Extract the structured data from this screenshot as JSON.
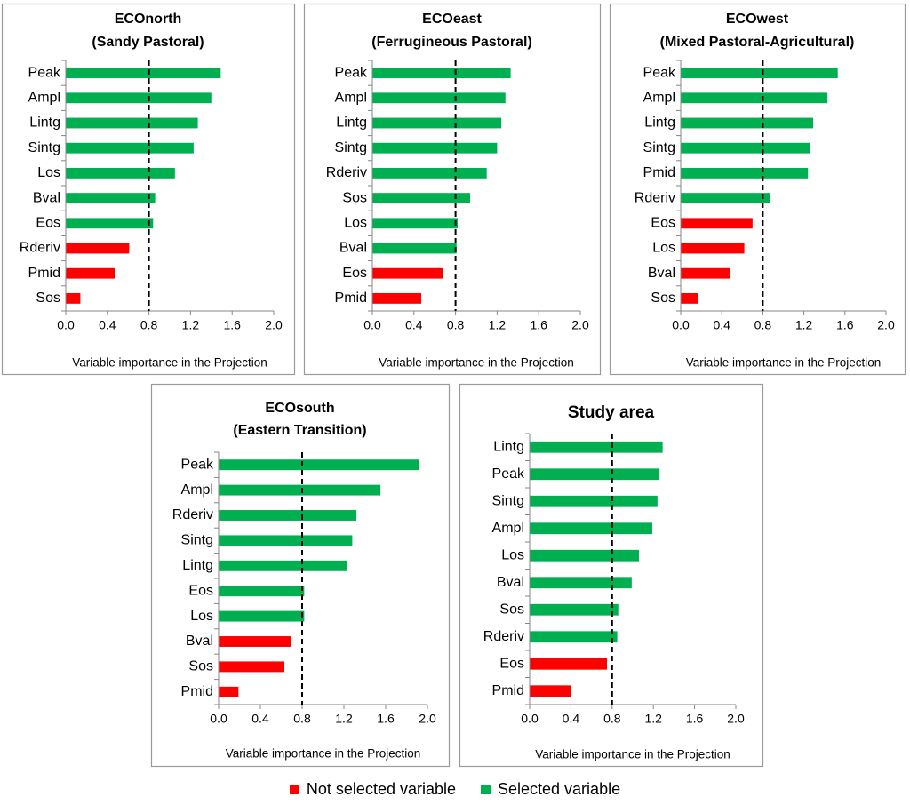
{
  "chart_data": [
    {
      "type": "bar",
      "orientation": "horizontal",
      "title": "ECOnorth",
      "subtitle": "(Sandy Pastoral)",
      "xlabel": "Variable importance in the Projection",
      "xlim": [
        0.0,
        2.0
      ],
      "xticks": [
        "0.0",
        "0.4",
        "0.8",
        "1.2",
        "1.6",
        "2.0"
      ],
      "threshold": 0.8,
      "categories": [
        "Peak",
        "Ampl",
        "Lintg",
        "Sintg",
        "Los",
        "Bval",
        "Eos",
        "Rderiv",
        "Pmid",
        "Sos"
      ],
      "values": [
        1.49,
        1.4,
        1.27,
        1.23,
        1.05,
        0.86,
        0.84,
        0.61,
        0.47,
        0.14
      ],
      "selected": [
        true,
        true,
        true,
        true,
        true,
        true,
        true,
        false,
        false,
        false
      ]
    },
    {
      "type": "bar",
      "orientation": "horizontal",
      "title": "ECOeast",
      "subtitle": "(Ferrugineous Pastoral)",
      "xlabel": "Variable importance in the Projection",
      "xlim": [
        0.0,
        2.0
      ],
      "xticks": [
        "0.0",
        "0.4",
        "0.8",
        "1.2",
        "1.6",
        "2.0"
      ],
      "threshold": 0.8,
      "categories": [
        "Peak",
        "Ampl",
        "Lintg",
        "Sintg",
        "Rderiv",
        "Sos",
        "Los",
        "Bval",
        "Eos",
        "Pmid"
      ],
      "values": [
        1.33,
        1.28,
        1.24,
        1.2,
        1.1,
        0.94,
        0.82,
        0.81,
        0.68,
        0.47
      ],
      "selected": [
        true,
        true,
        true,
        true,
        true,
        true,
        true,
        true,
        false,
        false
      ]
    },
    {
      "type": "bar",
      "orientation": "horizontal",
      "title": "ECOwest",
      "subtitle": "(Mixed Pastoral-Agricultural)",
      "xlabel": "Variable importance in the Projection",
      "xlim": [
        0.0,
        2.0
      ],
      "xticks": [
        "0.0",
        "0.4",
        "0.8",
        "1.2",
        "1.6",
        "2.0"
      ],
      "threshold": 0.8,
      "categories": [
        "Peak",
        "Ampl",
        "Lintg",
        "Sintg",
        "Pmid",
        "Rderiv",
        "Eos",
        "Los",
        "Bval",
        "Sos"
      ],
      "values": [
        1.53,
        1.43,
        1.29,
        1.26,
        1.24,
        0.87,
        0.7,
        0.62,
        0.48,
        0.17
      ],
      "selected": [
        true,
        true,
        true,
        true,
        true,
        true,
        false,
        false,
        false,
        false
      ]
    },
    {
      "type": "bar",
      "orientation": "horizontal",
      "title": "ECOsouth",
      "subtitle": "(Eastern Transition)",
      "xlabel": "Variable importance in the Projection",
      "xlim": [
        0.0,
        2.0
      ],
      "xticks": [
        "0.0",
        "0.4",
        "0.8",
        "1.2",
        "1.6",
        "2.0"
      ],
      "threshold": 0.8,
      "categories": [
        "Peak",
        "Ampl",
        "Rderiv",
        "Sintg",
        "Lintg",
        "Eos",
        "Los",
        "Bval",
        "Sos",
        "Pmid"
      ],
      "values": [
        1.92,
        1.55,
        1.32,
        1.28,
        1.23,
        0.82,
        0.82,
        0.69,
        0.63,
        0.19
      ],
      "selected": [
        true,
        true,
        true,
        true,
        true,
        true,
        true,
        false,
        false,
        false
      ]
    },
    {
      "type": "bar",
      "orientation": "horizontal",
      "title": "Study area",
      "subtitle": "",
      "xlabel": "Variable importance in the Projection",
      "xlim": [
        0.0,
        2.0
      ],
      "xticks": [
        "0.0",
        "0.4",
        "0.8",
        "1.2",
        "1.6",
        "2.0"
      ],
      "threshold": 0.8,
      "categories": [
        "Lintg",
        "Peak",
        "Sintg",
        "Ampl",
        "Los",
        "Bval",
        "Sos",
        "Rderiv",
        "Eos",
        "Pmid"
      ],
      "values": [
        1.29,
        1.26,
        1.24,
        1.19,
        1.06,
        0.99,
        0.86,
        0.85,
        0.75,
        0.4
      ],
      "selected": [
        true,
        true,
        true,
        true,
        true,
        true,
        true,
        true,
        false,
        false
      ]
    }
  ],
  "legend": {
    "not_selected_label": "Not selected variable",
    "selected_label": "Selected variable"
  },
  "colors": {
    "selected": "#00b050",
    "not_selected": "#ff0000",
    "frame": "#9a9a9a",
    "axis": "#868686"
  }
}
